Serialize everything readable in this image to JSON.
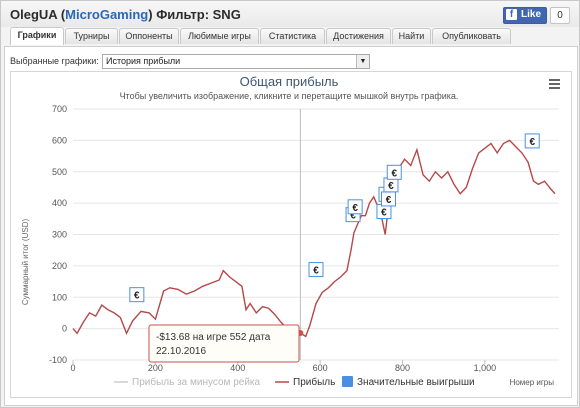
{
  "header": {
    "user": "OlegUA",
    "open_paren": " (",
    "network": "MicroGaming",
    "close_paren": ")",
    "filter_label": " Фильтр: SNG",
    "like_label": "Like",
    "like_count": "0"
  },
  "tabs": [
    {
      "label": "Графики",
      "active": true
    },
    {
      "label": "Турниры"
    },
    {
      "label": "Оппоненты"
    },
    {
      "label": "Любимые игры"
    },
    {
      "label": "Статистика"
    },
    {
      "label": "Достижения"
    },
    {
      "label": "Найти"
    },
    {
      "label": "Опубликовать"
    }
  ],
  "chart_select": {
    "label": "Выбранные графики:",
    "value": "История прибыли"
  },
  "icons": {
    "menu": "hamburger-menu-icon",
    "marker": "euro-icon"
  },
  "colors": {
    "profit_line": "#b54848",
    "rake_line": "#cccccc",
    "wins_marker": "#4a90e2",
    "brand": "#2a67b8"
  },
  "tooltip": {
    "line1": "-$13.68 на игре 552 дата",
    "line2": "22.10.2016"
  },
  "chart_data": {
    "type": "line",
    "title": "Общая прибыль",
    "subtitle": "Чтобы увеличить изображение, кликните и перетащите мышкой внутрь графика.",
    "ylabel": "Суммарный итог (USD)",
    "xlabel": "Номер игры",
    "ylim": [
      -100,
      700
    ],
    "xlim": [
      0,
      1180
    ],
    "y_ticks": [
      "-100",
      "0",
      "100",
      "200",
      "300",
      "400",
      "500",
      "600",
      "700"
    ],
    "x_ticks": [
      "0",
      "200",
      "400",
      "600",
      "800",
      "1,000"
    ],
    "grid": "horizontal",
    "crosshair_x": 552,
    "legend": [
      "Прибыль за минусом рейка",
      "Прибыль",
      "Значительные выигрыши"
    ],
    "series": [
      {
        "name": "Прибыль",
        "points": [
          [
            0,
            0
          ],
          [
            10,
            -15
          ],
          [
            25,
            20
          ],
          [
            40,
            50
          ],
          [
            55,
            40
          ],
          [
            70,
            75
          ],
          [
            85,
            60
          ],
          [
            100,
            50
          ],
          [
            115,
            35
          ],
          [
            130,
            -15
          ],
          [
            145,
            25
          ],
          [
            165,
            55
          ],
          [
            185,
            50
          ],
          [
            200,
            30
          ],
          [
            220,
            120
          ],
          [
            235,
            130
          ],
          [
            255,
            125
          ],
          [
            275,
            110
          ],
          [
            295,
            120
          ],
          [
            315,
            135
          ],
          [
            335,
            145
          ],
          [
            355,
            155
          ],
          [
            365,
            185
          ],
          [
            380,
            165
          ],
          [
            395,
            150
          ],
          [
            410,
            135
          ],
          [
            420,
            60
          ],
          [
            430,
            80
          ],
          [
            445,
            50
          ],
          [
            460,
            70
          ],
          [
            475,
            65
          ],
          [
            490,
            45
          ],
          [
            505,
            20
          ],
          [
            520,
            0
          ],
          [
            535,
            10
          ],
          [
            552,
            -14
          ],
          [
            565,
            -25
          ],
          [
            575,
            10
          ],
          [
            590,
            80
          ],
          [
            605,
            115
          ],
          [
            620,
            130
          ],
          [
            635,
            150
          ],
          [
            650,
            165
          ],
          [
            665,
            185
          ],
          [
            675,
            250
          ],
          [
            682,
            305
          ],
          [
            690,
            330
          ],
          [
            700,
            360
          ],
          [
            710,
            360
          ],
          [
            720,
            400
          ],
          [
            730,
            420
          ],
          [
            740,
            390
          ],
          [
            750,
            350
          ],
          [
            758,
            300
          ],
          [
            765,
            380
          ],
          [
            778,
            440
          ],
          [
            790,
            510
          ],
          [
            805,
            540
          ],
          [
            820,
            520
          ],
          [
            835,
            570
          ],
          [
            850,
            490
          ],
          [
            865,
            470
          ],
          [
            880,
            500
          ],
          [
            895,
            480
          ],
          [
            910,
            500
          ],
          [
            925,
            460
          ],
          [
            940,
            430
          ],
          [
            955,
            450
          ],
          [
            970,
            510
          ],
          [
            985,
            560
          ],
          [
            1000,
            575
          ],
          [
            1015,
            590
          ],
          [
            1030,
            560
          ],
          [
            1045,
            590
          ],
          [
            1060,
            600
          ],
          [
            1075,
            580
          ],
          [
            1090,
            560
          ],
          [
            1105,
            530
          ],
          [
            1118,
            470
          ],
          [
            1130,
            460
          ],
          [
            1145,
            470
          ],
          [
            1160,
            445
          ],
          [
            1170,
            430
          ]
        ]
      }
    ],
    "significant_wins": [
      [
        155,
        70
      ],
      [
        590,
        150
      ],
      [
        680,
        325
      ],
      [
        685,
        350
      ],
      [
        755,
        335
      ],
      [
        760,
        390
      ],
      [
        766,
        375
      ],
      [
        772,
        420
      ],
      [
        780,
        460
      ],
      [
        1115,
        560
      ]
    ]
  }
}
